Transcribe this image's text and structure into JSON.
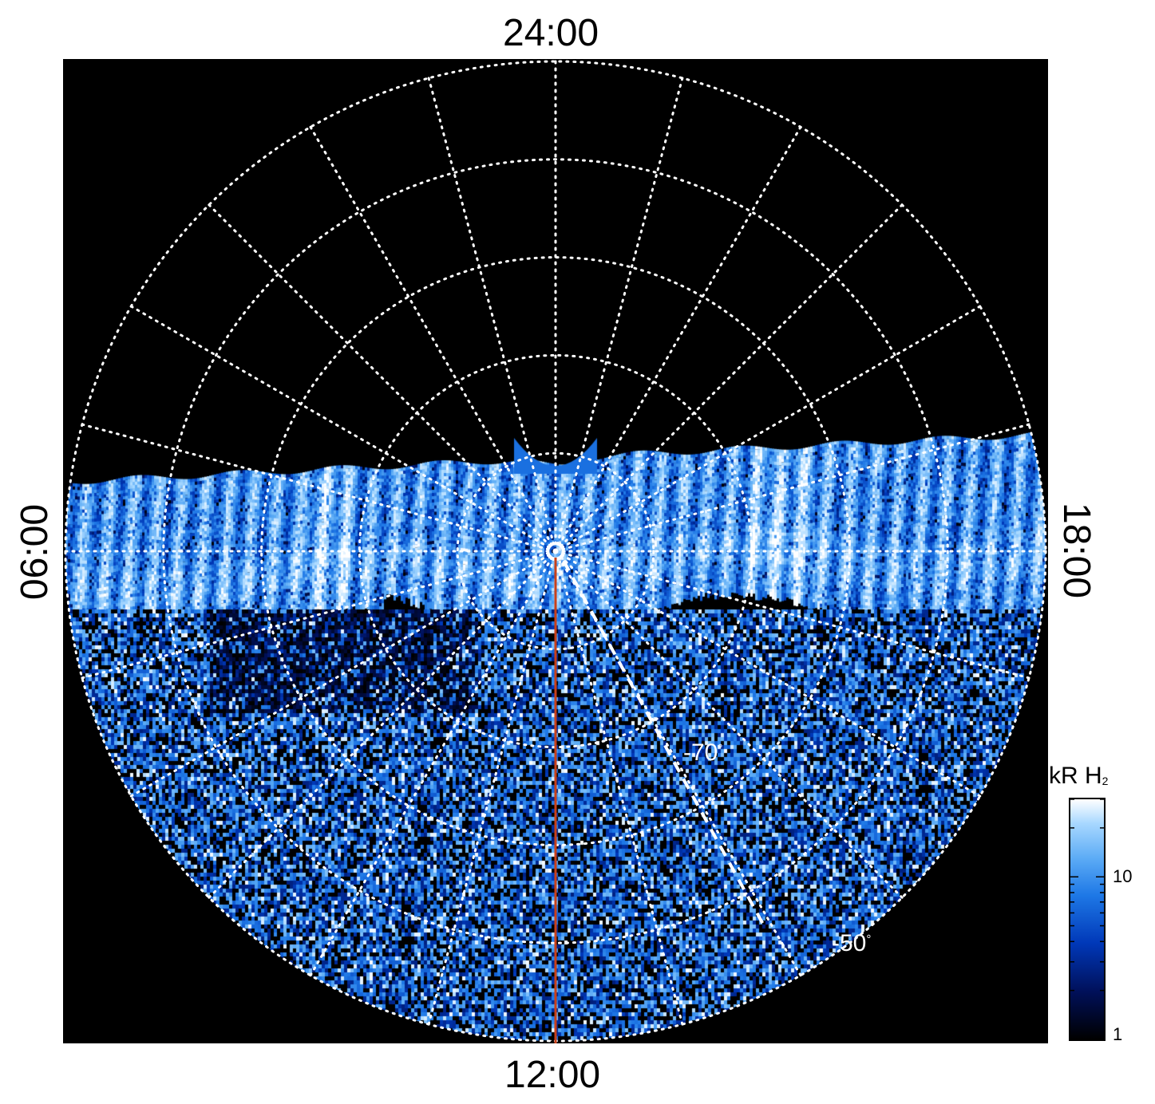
{
  "local_time_labels": {
    "top": "24:00",
    "bottom": "12:00",
    "left": "06:00",
    "right": "18:00"
  },
  "latitude_labels": {
    "lat_70": "-70",
    "lat_50": "-50",
    "degree_symbol": "°"
  },
  "colorbar": {
    "title_main": "kR H",
    "title_sub": "2",
    "tick_10": "10",
    "tick_1": "1",
    "scale": "log",
    "range": [
      1,
      30
    ]
  },
  "colors": {
    "background": "#000000",
    "grid": "#ffffff",
    "longitude_line": "#c8401a",
    "colormap": [
      "#000000",
      "#00105a",
      "#0038b8",
      "#1e78e6",
      "#5aaaf5",
      "#a8d8ff",
      "#ffffff"
    ]
  },
  "grid": {
    "projection": "polar",
    "local_time_meridian_hours": 24,
    "latitude_circles": 5,
    "grid_style": "dotted"
  }
}
